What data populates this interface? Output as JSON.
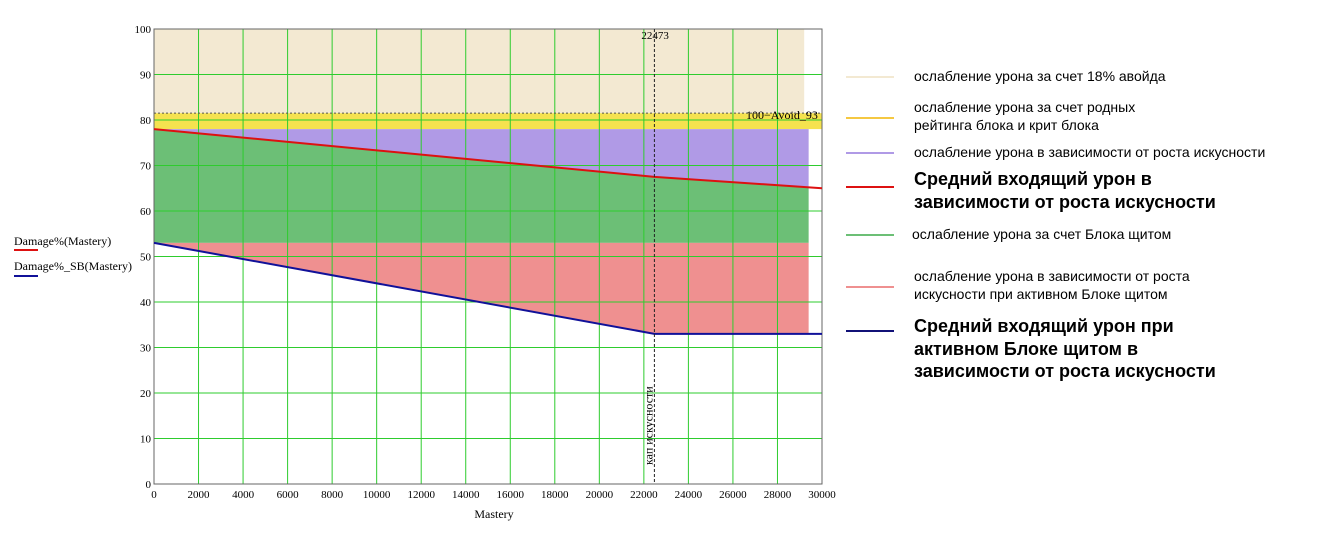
{
  "chart_data": {
    "type": "area",
    "xlabel": "Mastery",
    "x_ticks": [
      0,
      2000,
      4000,
      6000,
      8000,
      10000,
      12000,
      14000,
      16000,
      18000,
      20000,
      22000,
      24000,
      26000,
      28000,
      30000
    ],
    "y_ticks": [
      0,
      10,
      20,
      30,
      40,
      50,
      60,
      70,
      80,
      90,
      100
    ],
    "xlim": [
      0,
      30000
    ],
    "ylim": [
      0,
      100
    ],
    "grid": true,
    "function_labels": [
      "Damage%(Mastery)",
      "Damage%_SB(Mastery)"
    ],
    "marker": {
      "x": 22473,
      "label": "22473",
      "caption": "кап искусности"
    },
    "hline": {
      "y": 81.5,
      "label": "100−Avoid_93"
    },
    "series": [
      {
        "name": "Средний входящий урон в зависимости от роста искусности",
        "color": "#dd1111",
        "points": [
          [
            0,
            78
          ],
          [
            22473,
            67.5
          ],
          [
            30000,
            65
          ]
        ]
      },
      {
        "name": "Средний входящий урон при активном Блоке щитом в зависимости от роста искусности",
        "color": "#111199",
        "points": [
          [
            0,
            53
          ],
          [
            22473,
            33
          ],
          [
            30000,
            33
          ]
        ]
      }
    ],
    "bands": [
      {
        "name": "ослабление урона за счет 18% авойда",
        "color": "#f3e9d2",
        "y_from": 81.5,
        "y_to": 100,
        "x_to": 29200
      },
      {
        "name": "ослабление урона за счет родных рейтинга блока и крит блока",
        "color": "#f5e24f",
        "y_from": 78,
        "y_to": 81.5,
        "x_to": 30000
      }
    ],
    "legend": [
      {
        "text": "ослабление урона за счет 18% авойда",
        "color": "#f3e9d2",
        "bold": false
      },
      {
        "text": "ослабление урона за счет родных рейтинга блока и крит блока",
        "color": "#f5c842",
        "bold": false
      },
      {
        "text": "ослабление урона в зависимости от роста искусности",
        "color": "#b09ae6",
        "bold": false
      },
      {
        "text": "Средний входящий урон в зависимости от роста искусности",
        "color": "#dd1111",
        "bold": true
      },
      {
        "text": "ослабление урона за счет Блока щитом",
        "color": "#6cbf76",
        "bold": false
      },
      {
        "text": "ослабление урона в зависимости от роста искусности при активном Блоке щитом",
        "color": "#ef9090",
        "bold": false
      },
      {
        "text": "Средний входящий урон при активном Блоке щитом в зависимости от роста искусности",
        "color": "#111177",
        "bold": true
      }
    ]
  }
}
